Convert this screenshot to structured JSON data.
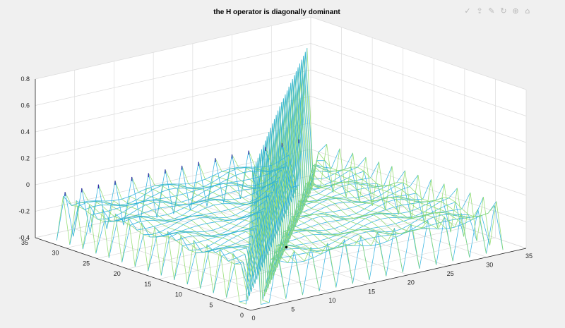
{
  "toolbar": {
    "icons": [
      "edit-check-icon",
      "export-icon",
      "brush-icon",
      "rotate-icon",
      "zoom-icon",
      "restore-view-icon"
    ]
  },
  "chart_data": {
    "type": "surface-mesh",
    "title": "the H operator is diagonally dominant",
    "xlabel": "",
    "ylabel": "",
    "zlabel": "",
    "xlim": [
      0,
      35
    ],
    "ylim": [
      0,
      35
    ],
    "zlim": [
      -0.4,
      0.8
    ],
    "x_ticks": [
      "0",
      "5",
      "10",
      "15",
      "20",
      "25",
      "30",
      "35"
    ],
    "y_ticks": [
      "0",
      "5",
      "10",
      "15",
      "20",
      "25",
      "30",
      "35"
    ],
    "z_ticks": [
      "-0.4",
      "-0.2",
      "0",
      "0.2",
      "0.4",
      "0.6",
      "0.8"
    ],
    "grid": true,
    "n": 31,
    "diagonal_peak": 0.65,
    "diagonal_near_min": -0.4,
    "background_level": -0.15,
    "edge_spike_low": -0.4,
    "edge_spike_high": -0.05,
    "colors": {
      "mesh_low": "#2ab0e0",
      "mesh_mid": "#5cc6d8",
      "mesh_high": "#8edb6a",
      "mesh_dark": "#3e26a8",
      "axis": "#262626",
      "grid": "#dcdcdc",
      "pane": "#ffffff",
      "marker": "#000000"
    }
  }
}
